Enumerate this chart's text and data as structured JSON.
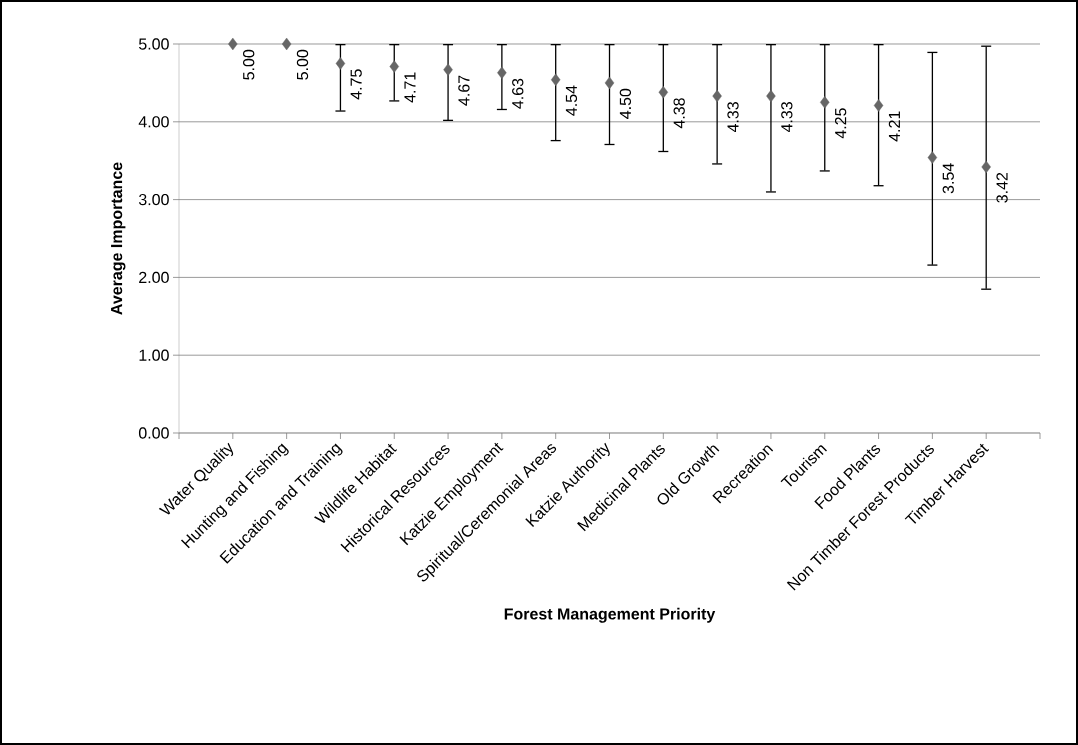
{
  "chart_data": {
    "type": "scatter",
    "xlabel": "Forest Management Priority",
    "ylabel": "Average Importance",
    "categories": [
      "Water Quality",
      "Hunting and Fishing",
      "Education and Training",
      "Wildlife Habitat",
      "Historical Resources",
      "Katzie Employment",
      "Spiritual/Ceremonial Areas",
      "Katzie Authority",
      "Medicinal Plants",
      "Old Growth",
      "Recreation",
      "Tourism",
      "Food Plants",
      "Non Timber Forest Products",
      "Timber Harvest"
    ],
    "values": [
      5.0,
      5.0,
      4.75,
      4.71,
      4.67,
      4.63,
      4.54,
      4.5,
      4.38,
      4.33,
      4.33,
      4.25,
      4.21,
      3.54,
      3.42
    ],
    "value_labels": [
      "5.00",
      "5.00",
      "4.75",
      "4.71",
      "4.67",
      "4.63",
      "4.54",
      "4.50",
      "4.38",
      "4.33",
      "4.33",
      "4.25",
      "4.21",
      "3.54",
      "3.42"
    ],
    "errors": [
      null,
      null,
      [
        4.13,
        5.0
      ],
      [
        4.26,
        5.0
      ],
      [
        4.01,
        5.0
      ],
      [
        4.15,
        5.0
      ],
      [
        3.75,
        5.0
      ],
      [
        3.7,
        5.0
      ],
      [
        3.61,
        5.0
      ],
      [
        3.45,
        5.0
      ],
      [
        3.09,
        5.0
      ],
      [
        3.36,
        5.0
      ],
      [
        3.17,
        5.0
      ],
      [
        2.15,
        4.9
      ],
      [
        1.84,
        4.98
      ]
    ],
    "color": "#666666",
    "marker": "diamond",
    "grid": "y",
    "ylim": [
      0,
      5
    ],
    "yticks": [
      {
        "value": 0,
        "label": "0.00"
      },
      {
        "value": 1,
        "label": "1.00"
      },
      {
        "value": 2,
        "label": "2.00"
      },
      {
        "value": 3,
        "label": "3.00"
      },
      {
        "value": 4,
        "label": "4.00"
      },
      {
        "value": 5,
        "label": "5.00"
      }
    ]
  }
}
